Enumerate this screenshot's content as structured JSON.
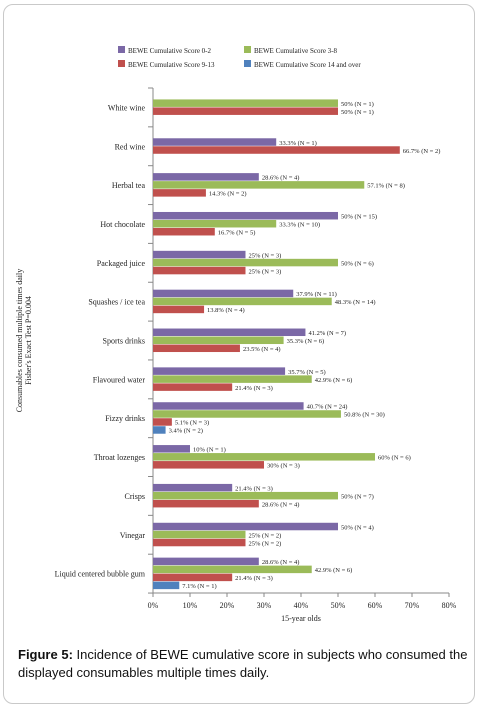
{
  "chart_data": {
    "type": "bar",
    "orientation": "horizontal",
    "categories": [
      "White wine",
      "Red wine",
      "Herbal tea",
      "Hot chocolate",
      "Packaged juice",
      "Squashes / ice tea",
      "Sports drinks",
      "Flavoured water",
      "Fizzy drinks",
      "Throat lozenges",
      "Crisps",
      "Vinegar",
      "Liquid centered bubble gum"
    ],
    "series": [
      {
        "name": "BEWE Cumulative Score 0-2",
        "color": "#7b68a6",
        "values": [
          null,
          33.3,
          28.6,
          50,
          25,
          37.9,
          41.2,
          35.7,
          40.7,
          10,
          21.4,
          50,
          28.6
        ],
        "labels": [
          "",
          "33.3% (N = 1)",
          "28.6% (N = 4)",
          "50% (N = 15)",
          "25% (N = 3)",
          "37.9% (N = 11)",
          "41.2% (N = 7)",
          "35.7% (N = 5)",
          "40.7% (N = 24)",
          "10% (N = 1)",
          "21.4% (N = 3)",
          "50% (N = 4)",
          "28.6% (N = 4)"
        ]
      },
      {
        "name": "BEWE Cumulative Score 3-8",
        "color": "#9bbb59",
        "values": [
          50,
          null,
          57.1,
          33.3,
          50,
          48.3,
          35.3,
          42.9,
          50.8,
          60,
          50,
          25,
          42.9
        ],
        "labels": [
          "50% (N = 1)",
          "",
          "57.1% (N = 8)",
          "33.3% (N = 10)",
          "50% (N = 6)",
          "48.3% (N = 14)",
          "35.3% (N = 6)",
          "42.9% (N = 6)",
          "50.8% (N = 30)",
          "60% (N = 6)",
          "50% (N = 7)",
          "25% (N = 2)",
          "42.9% (N = 6)"
        ]
      },
      {
        "name": "BEWE Cumulative Score 9-13",
        "color": "#c0504d",
        "values": [
          50,
          66.7,
          14.3,
          16.7,
          25,
          13.8,
          23.5,
          21.4,
          5.1,
          30,
          28.6,
          25,
          21.4
        ],
        "labels": [
          "50% (N = 1)",
          "66.7% (N = 2)",
          "14.3% (N = 2)",
          "16.7% (N = 5)",
          "25% (N = 3)",
          "13.8% (N = 4)",
          "23.5% (N = 4)",
          "21.4% (N = 3)",
          "5.1% (N = 3)",
          "30% (N = 3)",
          "28.6% (N = 4)",
          "25% (N = 2)",
          "21.4% (N = 3)"
        ]
      },
      {
        "name": "BEWE Cumulative Score 14 and over",
        "color": "#4f81bd",
        "values": [
          null,
          null,
          null,
          null,
          null,
          null,
          null,
          null,
          3.4,
          null,
          null,
          null,
          7.1
        ],
        "labels": [
          "",
          "",
          "",
          "",
          "",
          "",
          "",
          "",
          "3.4% (N = 2)",
          "",
          "",
          "",
          "7.1% (N = 1)"
        ]
      }
    ],
    "xlabel": "15-year olds",
    "ylabel_lines": [
      "Consumables consumed multiple times daily",
      "Fisher's Exact Test P=0.004"
    ],
    "xlim": [
      0,
      80
    ],
    "xticks": [
      0,
      10,
      20,
      30,
      40,
      50,
      60,
      70,
      80
    ],
    "xtick_suffix": "%",
    "legend_position": "top",
    "grid": false
  },
  "caption": {
    "label": "Figure 5:",
    "text": " Incidence of BEWE cumulative score in subjects who consumed the displayed consumables multiple times daily."
  }
}
